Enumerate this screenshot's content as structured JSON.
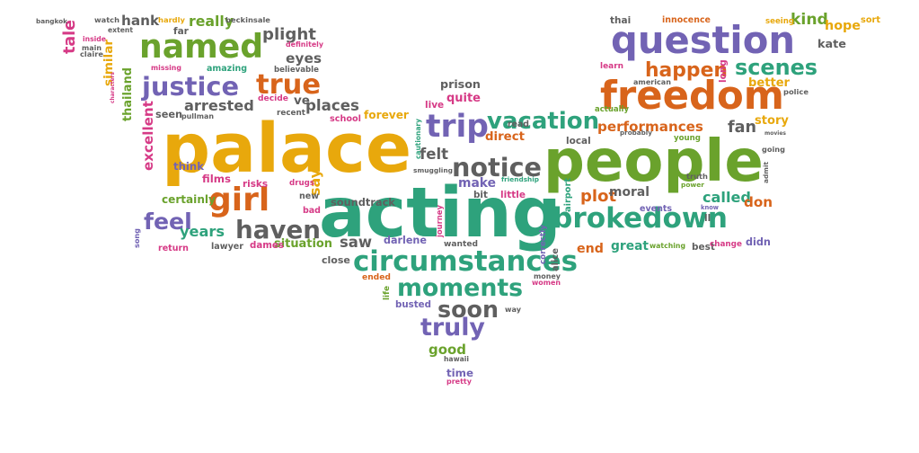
{
  "colors": {
    "orange": "#e8a80c",
    "red": "#d8641b",
    "green": "#2ea27c",
    "purple": "#7263b4",
    "gray": "#5f5f5f",
    "pink": "#d63a86",
    "lime": "#6aa22c"
  },
  "words": [
    {
      "text": "palace",
      "color": "orange"
    },
    {
      "text": "acting",
      "color": "green"
    },
    {
      "text": "people",
      "color": "lime"
    },
    {
      "text": "question",
      "color": "purple"
    },
    {
      "text": "freedom",
      "color": "red"
    },
    {
      "text": "brokedown",
      "color": "green"
    },
    {
      "text": "circumstances",
      "color": "green"
    },
    {
      "text": "named",
      "color": "lime"
    },
    {
      "text": "justice",
      "color": "purple"
    },
    {
      "text": "true",
      "color": "red"
    },
    {
      "text": "girl",
      "color": "red"
    },
    {
      "text": "vacation",
      "color": "green"
    },
    {
      "text": "trip",
      "color": "purple"
    },
    {
      "text": "notice",
      "color": "gray"
    },
    {
      "text": "moments",
      "color": "green"
    },
    {
      "text": "haven",
      "color": "gray"
    },
    {
      "text": "feel",
      "color": "purple"
    },
    {
      "text": "scenes",
      "color": "green"
    },
    {
      "text": "happen",
      "color": "red"
    },
    {
      "text": "soon",
      "color": "gray"
    },
    {
      "text": "truly",
      "color": "purple"
    },
    {
      "text": "performances",
      "color": "red"
    },
    {
      "text": "years",
      "color": "green"
    },
    {
      "text": "arrested",
      "color": "gray"
    },
    {
      "text": "places",
      "color": "gray"
    },
    {
      "text": "plight",
      "color": "gray"
    },
    {
      "text": "eyes",
      "color": "gray"
    },
    {
      "text": "really",
      "color": "lime"
    },
    {
      "text": "hank",
      "color": "gray"
    },
    {
      "text": "tale",
      "color": "pink"
    },
    {
      "text": "similar",
      "color": "orange"
    },
    {
      "text": "thailand",
      "color": "lime"
    },
    {
      "text": "excellent",
      "color": "pink"
    },
    {
      "text": "ve",
      "color": "gray"
    },
    {
      "text": "prison",
      "color": "gray"
    },
    {
      "text": "quite",
      "color": "pink"
    },
    {
      "text": "kind",
      "color": "lime"
    },
    {
      "text": "hope",
      "color": "orange"
    },
    {
      "text": "kate",
      "color": "gray"
    },
    {
      "text": "better",
      "color": "orange"
    },
    {
      "text": "fan",
      "color": "gray"
    },
    {
      "text": "story",
      "color": "orange"
    },
    {
      "text": "called",
      "color": "green"
    },
    {
      "text": "don",
      "color": "red"
    },
    {
      "text": "plot",
      "color": "red"
    },
    {
      "text": "moral",
      "color": "gray"
    },
    {
      "text": "end",
      "color": "red"
    },
    {
      "text": "great",
      "color": "green"
    },
    {
      "text": "felt",
      "color": "gray"
    },
    {
      "text": "make",
      "color": "purple"
    },
    {
      "text": "direct",
      "color": "red"
    },
    {
      "text": "soundtrack",
      "color": "gray"
    },
    {
      "text": "say",
      "color": "orange"
    },
    {
      "text": "situation",
      "color": "lime"
    },
    {
      "text": "darlene",
      "color": "purple"
    },
    {
      "text": "saw",
      "color": "gray"
    },
    {
      "text": "forever",
      "color": "orange"
    },
    {
      "text": "good",
      "color": "lime"
    },
    {
      "text": "certainly",
      "color": "lime"
    },
    {
      "text": "films",
      "color": "pink"
    },
    {
      "text": "think",
      "color": "purple"
    },
    {
      "text": "seen",
      "color": "gray"
    },
    {
      "text": "amazing",
      "color": "green"
    },
    {
      "text": "believable",
      "color": "gray"
    },
    {
      "text": "definitely",
      "color": "pink"
    },
    {
      "text": "decide",
      "color": "pink"
    },
    {
      "text": "recent",
      "color": "gray"
    },
    {
      "text": "school",
      "color": "pink"
    },
    {
      "text": "pullman",
      "color": "gray"
    },
    {
      "text": "lawyer",
      "color": "gray"
    },
    {
      "text": "dames",
      "color": "pink"
    },
    {
      "text": "ended",
      "color": "red"
    },
    {
      "text": "busted",
      "color": "purple"
    },
    {
      "text": "close",
      "color": "gray"
    },
    {
      "text": "wanted",
      "color": "gray"
    },
    {
      "text": "hawaii",
      "color": "gray"
    },
    {
      "text": "time",
      "color": "purple"
    },
    {
      "text": "pretty",
      "color": "pink"
    },
    {
      "text": "bangkok",
      "color": "gray"
    },
    {
      "text": "watch",
      "color": "gray"
    },
    {
      "text": "hardly",
      "color": "orange"
    },
    {
      "text": "far",
      "color": "gray"
    },
    {
      "text": "beckinsale",
      "color": "gray"
    },
    {
      "text": "extent",
      "color": "gray"
    },
    {
      "text": "missing",
      "color": "pink"
    },
    {
      "text": "inside",
      "color": "pink"
    },
    {
      "text": "main",
      "color": "gray"
    },
    {
      "text": "claire",
      "color": "gray"
    },
    {
      "text": "characters",
      "color": "pink"
    },
    {
      "text": "risks",
      "color": "pink"
    },
    {
      "text": "drugs",
      "color": "pink"
    },
    {
      "text": "bad",
      "color": "pink"
    },
    {
      "text": "new",
      "color": "gray"
    },
    {
      "text": "live",
      "color": "pink"
    },
    {
      "text": "read",
      "color": "gray"
    },
    {
      "text": "smuggling",
      "color": "gray"
    },
    {
      "text": "friendship",
      "color": "green"
    },
    {
      "text": "little",
      "color": "pink"
    },
    {
      "text": "bit",
      "color": "gray"
    },
    {
      "text": "cautionary",
      "color": "green"
    },
    {
      "text": "journey",
      "color": "pink"
    },
    {
      "text": "actually",
      "color": "lime"
    },
    {
      "text": "local",
      "color": "gray"
    },
    {
      "text": "probably",
      "color": "gray"
    },
    {
      "text": "young",
      "color": "lime"
    },
    {
      "text": "truth",
      "color": "gray"
    },
    {
      "text": "power",
      "color": "lime"
    },
    {
      "text": "know",
      "color": "purple"
    },
    {
      "text": "ll",
      "color": "gray"
    },
    {
      "text": "events",
      "color": "purple"
    },
    {
      "text": "airport",
      "color": "green"
    },
    {
      "text": "watching",
      "color": "lime"
    },
    {
      "text": "best",
      "color": "gray"
    },
    {
      "text": "change",
      "color": "pink"
    },
    {
      "text": "didn",
      "color": "purple"
    },
    {
      "text": "thai",
      "color": "gray"
    },
    {
      "text": "innocence",
      "color": "red"
    },
    {
      "text": "seeing",
      "color": "orange"
    },
    {
      "text": "sort",
      "color": "orange"
    },
    {
      "text": "learn",
      "color": "pink"
    },
    {
      "text": "american",
      "color": "gray"
    },
    {
      "text": "police",
      "color": "gray"
    },
    {
      "text": "long",
      "color": "pink"
    },
    {
      "text": "movies",
      "color": "gray"
    },
    {
      "text": "going",
      "color": "gray"
    },
    {
      "text": "admit",
      "color": "gray"
    },
    {
      "text": "return",
      "color": "pink"
    },
    {
      "text": "song",
      "color": "purple"
    },
    {
      "text": "alice",
      "color": "gray"
    },
    {
      "text": "correctly",
      "color": "purple"
    },
    {
      "text": "money",
      "color": "gray"
    },
    {
      "text": "women",
      "color": "pink"
    },
    {
      "text": "life",
      "color": "lime"
    },
    {
      "text": "way",
      "color": "gray"
    }
  ]
}
